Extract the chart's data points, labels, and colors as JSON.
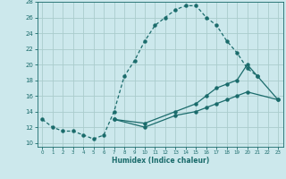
{
  "title": "",
  "xlabel": "Humidex (Indice chaleur)",
  "bg_color": "#cce8ec",
  "grid_color": "#aacccc",
  "line_color": "#1a6b6b",
  "xlim": [
    -0.5,
    23.5
  ],
  "ylim": [
    9.5,
    28.0
  ],
  "xticks": [
    0,
    1,
    2,
    3,
    4,
    5,
    6,
    7,
    8,
    9,
    10,
    11,
    12,
    13,
    14,
    15,
    16,
    17,
    18,
    19,
    20,
    21,
    22,
    23
  ],
  "yticks": [
    10,
    12,
    14,
    16,
    18,
    20,
    22,
    24,
    26,
    28
  ],
  "line1_x": [
    0,
    1,
    2,
    3,
    4,
    5,
    6,
    7,
    8,
    9,
    10,
    11,
    12,
    13,
    14,
    15,
    16,
    17,
    18,
    19,
    20,
    21
  ],
  "line1_y": [
    13,
    12,
    11.5,
    11.5,
    11,
    10.5,
    11,
    14,
    18.5,
    20.5,
    23,
    25,
    26,
    27,
    27.5,
    27.5,
    26,
    25,
    23,
    21.5,
    19.5,
    18.5
  ],
  "line2_x": [
    7,
    10,
    13,
    15,
    16,
    17,
    18,
    19,
    20,
    21,
    23
  ],
  "line2_y": [
    13,
    12.5,
    14,
    15,
    16,
    17,
    17.5,
    18,
    20,
    18.5,
    15.5
  ],
  "line3_x": [
    7,
    10,
    13,
    15,
    16,
    17,
    18,
    19,
    20,
    23
  ],
  "line3_y": [
    13,
    12,
    13.5,
    14,
    14.5,
    15,
    15.5,
    16,
    16.5,
    15.5
  ]
}
